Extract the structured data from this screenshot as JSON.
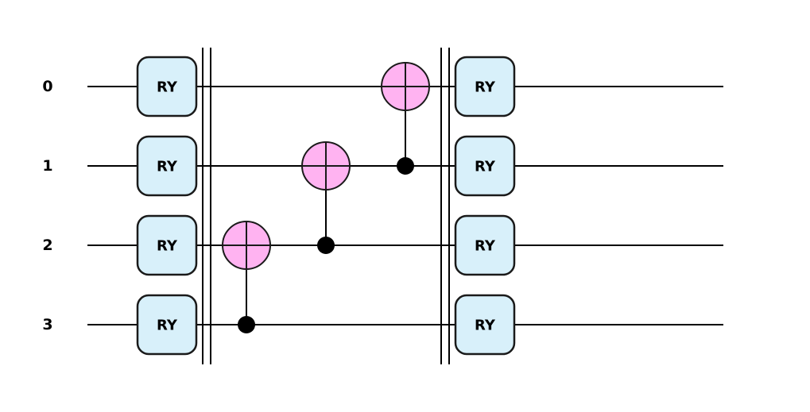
{
  "circuit": {
    "qubits": [
      {
        "label": "0"
      },
      {
        "label": "1"
      },
      {
        "label": "2"
      },
      {
        "label": "3"
      }
    ],
    "moments": [
      {
        "kind": "single",
        "name": "RY",
        "targets": [
          0,
          1,
          2,
          3
        ]
      },
      {
        "kind": "barrier"
      },
      {
        "kind": "cnot",
        "control": 3,
        "target": 2
      },
      {
        "kind": "cnot",
        "control": 2,
        "target": 1
      },
      {
        "kind": "cnot",
        "control": 1,
        "target": 0
      },
      {
        "kind": "barrier"
      },
      {
        "kind": "single",
        "name": "RY",
        "targets": [
          0,
          1,
          2,
          3
        ]
      }
    ],
    "colors": {
      "gate_fill": "#d8f0fa",
      "target_fill": "#ffb3f1",
      "wire": "#000000"
    }
  }
}
